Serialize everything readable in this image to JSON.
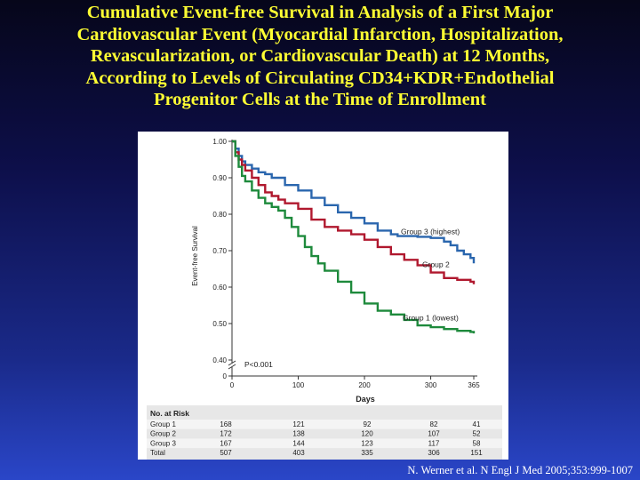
{
  "slide": {
    "title_lines": [
      "Cumulative Event-free Survival in Analysis of a First Major",
      "Cardiovascular Event (Myocardial Infarction, Hospitalization,",
      "Revascularization, or Cardiovascular Death) at 12 Months,",
      "According to Levels of Circulating CD34+KDR+Endothelial",
      "Progenitor Cells at the Time of Enrollment"
    ],
    "citation": "N. Werner et al. N Engl J Med 2005;353:999-1007"
  },
  "colors": {
    "title": "#ffff33",
    "group1": "#1e8a3c",
    "group2": "#b0182e",
    "group3": "#2a66ae",
    "risk_table_band": "#e7e7e7"
  },
  "chart_data": {
    "type": "line",
    "step": true,
    "ylabel": "Event-free Survival",
    "xlabel": "Days",
    "xlim": [
      0,
      365
    ],
    "ylim": [
      0.4,
      1.0
    ],
    "axis_break": true,
    "x_ticks": [
      "0",
      "100",
      "200",
      "300",
      "365"
    ],
    "y_ticks": [
      "1.00",
      "0.90",
      "0.80",
      "0.70",
      "0.60",
      "0.50",
      "0.40",
      "0"
    ],
    "annotation": "P<0.001",
    "series": [
      {
        "name": "Group 3 (highest)",
        "x": [
          0,
          5,
          10,
          15,
          20,
          30,
          40,
          50,
          60,
          80,
          100,
          120,
          140,
          160,
          180,
          200,
          220,
          240,
          250,
          260,
          280,
          300,
          320,
          330,
          340,
          350,
          360,
          365
        ],
        "y": [
          1.0,
          0.98,
          0.96,
          0.945,
          0.935,
          0.925,
          0.915,
          0.91,
          0.9,
          0.88,
          0.865,
          0.845,
          0.825,
          0.805,
          0.79,
          0.775,
          0.755,
          0.745,
          0.74,
          0.74,
          0.738,
          0.735,
          0.725,
          0.715,
          0.7,
          0.69,
          0.68,
          0.665
        ]
      },
      {
        "name": "Group 2",
        "x": [
          0,
          5,
          10,
          15,
          20,
          30,
          40,
          50,
          60,
          70,
          80,
          100,
          120,
          140,
          160,
          180,
          200,
          220,
          240,
          260,
          280,
          300,
          320,
          340,
          360,
          365
        ],
        "y": [
          1.0,
          0.97,
          0.95,
          0.935,
          0.92,
          0.9,
          0.88,
          0.86,
          0.85,
          0.84,
          0.83,
          0.815,
          0.785,
          0.765,
          0.755,
          0.745,
          0.73,
          0.71,
          0.69,
          0.675,
          0.66,
          0.64,
          0.625,
          0.62,
          0.615,
          0.608
        ]
      },
      {
        "name": "Group 1 (lowest)",
        "x": [
          0,
          5,
          10,
          15,
          20,
          30,
          40,
          50,
          60,
          70,
          80,
          90,
          100,
          110,
          120,
          130,
          140,
          160,
          180,
          200,
          220,
          240,
          260,
          280,
          300,
          320,
          340,
          360,
          365
        ],
        "y": [
          1.0,
          0.96,
          0.93,
          0.905,
          0.89,
          0.865,
          0.845,
          0.83,
          0.82,
          0.81,
          0.79,
          0.765,
          0.74,
          0.71,
          0.685,
          0.665,
          0.645,
          0.615,
          0.585,
          0.555,
          0.535,
          0.525,
          0.51,
          0.495,
          0.49,
          0.485,
          0.48,
          0.477,
          0.473
        ]
      }
    ],
    "risk_table": {
      "title": "No. at Risk",
      "days": [
        "0",
        "100",
        "200",
        "300",
        "365"
      ],
      "rows": [
        {
          "label": "Group 1",
          "values": [
            "168",
            "121",
            "92",
            "82",
            "41"
          ]
        },
        {
          "label": "Group 2",
          "values": [
            "172",
            "138",
            "120",
            "107",
            "52"
          ]
        },
        {
          "label": "Group 3",
          "values": [
            "167",
            "144",
            "123",
            "117",
            "58"
          ]
        },
        {
          "label": "Total",
          "values": [
            "507",
            "403",
            "335",
            "306",
            "151"
          ]
        }
      ]
    }
  }
}
